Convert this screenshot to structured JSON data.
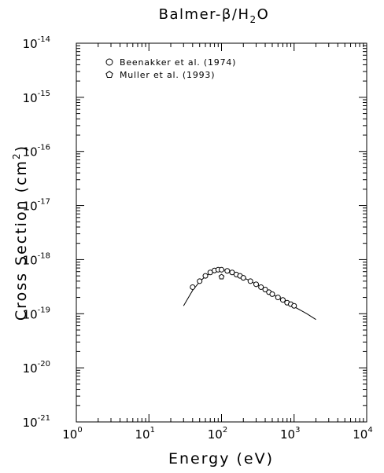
{
  "chart_data": {
    "type": "scatter",
    "title_main": "Balmer-β/H",
    "title_sub": "2",
    "title_tail": "O",
    "xlabel": "Energy (eV)",
    "ylabel_main": "Cross Section (cm",
    "ylabel_sup": "2",
    "ylabel_tail": ")",
    "xscale": "log",
    "yscale": "log",
    "xlim": [
      1,
      10000
    ],
    "ylim": [
      1e-21,
      1e-14
    ],
    "x_ticks": [
      {
        "value": 1,
        "base": "10",
        "exp": "0"
      },
      {
        "value": 10,
        "base": "10",
        "exp": "1"
      },
      {
        "value": 100,
        "base": "10",
        "exp": "2"
      },
      {
        "value": 1000,
        "base": "10",
        "exp": "3"
      },
      {
        "value": 10000,
        "base": "10",
        "exp": "4"
      }
    ],
    "y_ticks": [
      {
        "value": 1e-14,
        "base": "10",
        "exp": "-14"
      },
      {
        "value": 1e-15,
        "base": "10",
        "exp": "-15"
      },
      {
        "value": 1e-16,
        "base": "10",
        "exp": "-16"
      },
      {
        "value": 1e-17,
        "base": "10",
        "exp": "-17"
      },
      {
        "value": 1e-18,
        "base": "10",
        "exp": "-18"
      },
      {
        "value": 1e-19,
        "base": "10",
        "exp": "-19"
      },
      {
        "value": 1e-20,
        "base": "10",
        "exp": "-20"
      },
      {
        "value": 1e-21,
        "base": "10",
        "exp": "-21"
      }
    ],
    "legend_position": "top-left",
    "series": [
      {
        "name": "Beenakker et al. (1974)",
        "marker": "circle",
        "x": [
          40,
          50,
          60,
          70,
          80,
          90,
          100,
          120,
          140,
          160,
          180,
          200,
          250,
          300,
          350,
          400,
          450,
          500,
          600,
          700,
          800,
          900,
          1000
        ],
        "y": [
          3.1e-19,
          4e-19,
          5e-19,
          5.8e-19,
          6.3e-19,
          6.5e-19,
          6.5e-19,
          6.2e-19,
          5.8e-19,
          5.3e-19,
          5e-19,
          4.6e-19,
          4e-19,
          3.5e-19,
          3.1e-19,
          2.8e-19,
          2.5e-19,
          2.3e-19,
          2e-19,
          1.8e-19,
          1.6e-19,
          1.5e-19,
          1.4e-19
        ]
      },
      {
        "name": "Muller et al. (1993)",
        "marker": "pentagon",
        "x": [
          100
        ],
        "y": [
          4.8e-19
        ]
      }
    ],
    "fit_curve": {
      "x": [
        30,
        40,
        50,
        60,
        70,
        80,
        90,
        100,
        120,
        150,
        200,
        300,
        500,
        700,
        1000,
        1500,
        2000
      ],
      "y": [
        1.4e-19,
        2.7e-19,
        3.9e-19,
        4.9e-19,
        5.6e-19,
        6.1e-19,
        6.4e-19,
        6.5e-19,
        6.3e-19,
        5.7e-19,
        4.7e-19,
        3.5e-19,
        2.3e-19,
        1.8e-19,
        1.35e-19,
        1e-19,
        7.8e-20
      ]
    }
  }
}
